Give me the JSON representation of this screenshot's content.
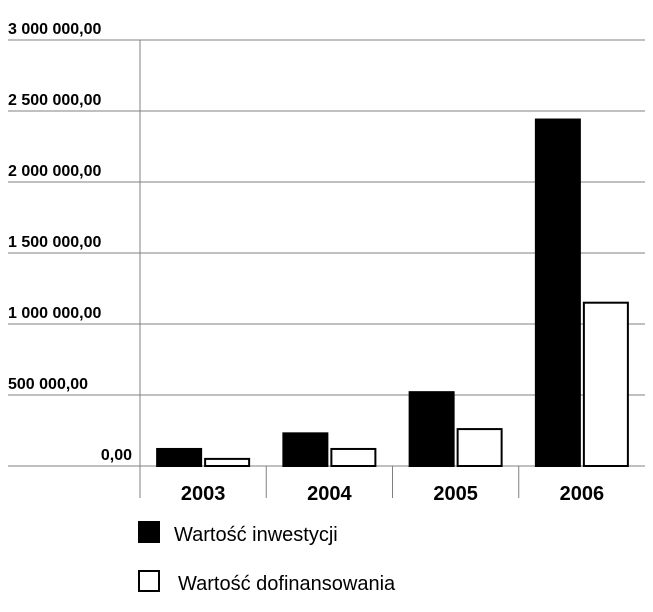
{
  "chart_data": {
    "type": "bar",
    "categories": [
      "2003",
      "2004",
      "2005",
      "2006"
    ],
    "series": [
      {
        "name": "Wartość inwestycji",
        "values": [
          120000,
          230000,
          520000,
          2440000
        ],
        "fill": "#000000"
      },
      {
        "name": "Wartość dofinansowania",
        "values": [
          50000,
          120000,
          260000,
          1150000
        ],
        "fill": "#ffffff"
      }
    ],
    "yticks": [
      "0,00",
      "500 000,00",
      "1 000 000,00",
      "1 500 000,00",
      "2 000 000,00",
      "2 500 000,00",
      "3 000 000,00"
    ],
    "ylim": [
      0,
      3000000
    ],
    "title": "",
    "xlabel": "",
    "ylabel": "",
    "grid": true,
    "legend_position": "bottom"
  }
}
